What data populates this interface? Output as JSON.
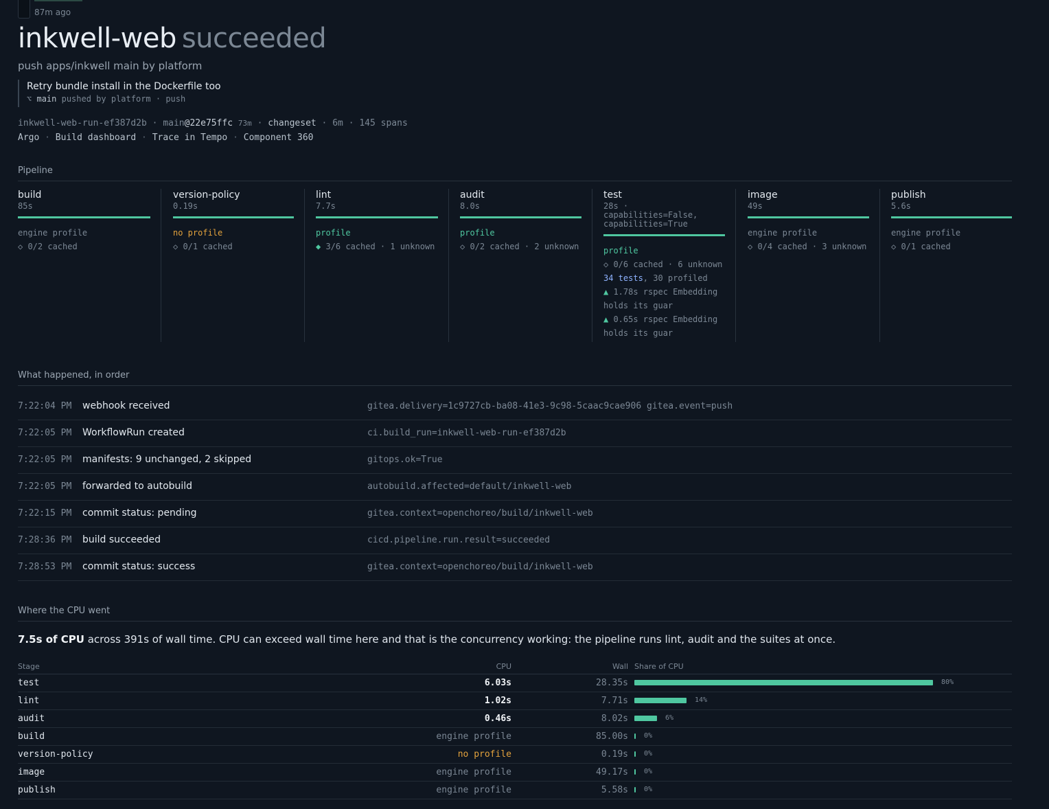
{
  "header": {
    "ago": "87m ago",
    "app_name": "inkwell-web",
    "status": "succeeded",
    "subtitle": "push apps/inkwell main by platform"
  },
  "commit": {
    "message": "Retry bundle install in the Dockerfile too",
    "branch_icon": "⌥",
    "branch": "main",
    "pushed_by": "pushed by platform · push"
  },
  "run": {
    "run_id": "inkwell-web-run-ef387d2b",
    "sep1": " · ",
    "ref_prefix": "main",
    "sha": "@22e75ffc",
    "sha_age": "73m",
    "sep2": " · ",
    "changeset": "changeset",
    "rest": " · 6m · 145 spans"
  },
  "links": {
    "argo": "Argo",
    "dashboard": "Build dashboard",
    "trace": "Trace in Tempo",
    "component": "Component 360",
    "sep": " · "
  },
  "pipeline": {
    "heading": "Pipeline",
    "stages": [
      {
        "name": "build",
        "duration": "85s",
        "profile": "engine profile",
        "cache": "◇ 0/2 cached"
      },
      {
        "name": "version-policy",
        "duration": "0.19s",
        "profile": "no profile",
        "cache": "◇ 0/1 cached"
      },
      {
        "name": "lint",
        "duration": "7.7s",
        "profile": "profile",
        "cache": "◆ 3/6 cached · 1 unknown"
      },
      {
        "name": "audit",
        "duration": "8.0s",
        "profile": "profile",
        "cache": "◇ 0/2 cached · 2 unknown"
      },
      {
        "name": "test",
        "duration": "28s ·",
        "duration2": "capabilities=False,",
        "duration3": "capabilities=True",
        "profile": "profile",
        "cache": "◇ 0/6 cached · 6 unknown",
        "tests_count": "34 tests",
        "tests_rest": ", 30 profiled",
        "slow1_icon": "▲",
        "slow1": " 1.78s rspec Embedding",
        "slow1b": "holds its guar",
        "slow2_icon": "▲",
        "slow2": " 0.65s rspec Embedding",
        "slow2b": "holds its guar"
      },
      {
        "name": "image",
        "duration": "49s",
        "profile": "engine profile",
        "cache": "◇ 0/4 cached · 3 unknown"
      },
      {
        "name": "publish",
        "duration": "5.6s",
        "profile": "engine profile",
        "cache": "◇ 0/1 cached"
      }
    ]
  },
  "timeline": {
    "heading": "What happened, in order",
    "events": [
      {
        "time": "7:22:04 PM",
        "text": "webhook received",
        "attrs": "gitea.delivery=1c9727cb-ba08-41e3-9c98-5caac9cae906 gitea.event=push"
      },
      {
        "time": "7:22:05 PM",
        "text": "WorkflowRun created",
        "attrs": "ci.build_run=inkwell-web-run-ef387d2b"
      },
      {
        "time": "7:22:05 PM",
        "text": "manifests: 9 unchanged, 2 skipped",
        "attrs": "gitops.ok=True"
      },
      {
        "time": "7:22:05 PM",
        "text": "forwarded to autobuild",
        "attrs": "autobuild.affected=default/inkwell-web"
      },
      {
        "time": "7:22:15 PM",
        "text": "commit status: pending",
        "attrs": "gitea.context=openchoreo/build/inkwell-web"
      },
      {
        "time": "7:28:36 PM",
        "text": "build succeeded",
        "attrs": "cicd.pipeline.run.result=succeeded"
      },
      {
        "time": "7:28:53 PM",
        "text": "commit status: success",
        "attrs": "gitea.context=openchoreo/build/inkwell-web"
      }
    ]
  },
  "cpu": {
    "heading": "Where the CPU went",
    "summary_bold": "7.5s of CPU",
    "summary_rest": " across 391s of wall time. CPU can exceed wall time here and that is the concurrency working: the pipeline runs lint, audit and the suites at once.",
    "columns": {
      "stage": "Stage",
      "cpu": "CPU",
      "wall": "Wall",
      "share": "Share of CPU"
    },
    "rows": [
      {
        "stage": "test",
        "cpu": "6.03s",
        "cpu_kind": "value",
        "wall": "28.35s",
        "share": 0.8,
        "share_label": "80%"
      },
      {
        "stage": "lint",
        "cpu": "1.02s",
        "cpu_kind": "value",
        "wall": "7.71s",
        "share": 0.14,
        "share_label": "14%"
      },
      {
        "stage": "audit",
        "cpu": "0.46s",
        "cpu_kind": "value",
        "wall": "8.02s",
        "share": 0.06,
        "share_label": "6%"
      },
      {
        "stage": "build",
        "cpu": "engine profile",
        "cpu_kind": "engine",
        "wall": "85.00s",
        "share": 0,
        "share_label": "0%"
      },
      {
        "stage": "version-policy",
        "cpu": "no profile",
        "cpu_kind": "none",
        "wall": "0.19s",
        "share": 0,
        "share_label": "0%"
      },
      {
        "stage": "image",
        "cpu": "engine profile",
        "cpu_kind": "engine",
        "wall": "49.17s",
        "share": 0,
        "share_label": "0%"
      },
      {
        "stage": "publish",
        "cpu": "engine profile",
        "cpu_kind": "engine",
        "wall": "5.58s",
        "share": 0,
        "share_label": "0%"
      }
    ]
  },
  "colors": {
    "accent": "#4fc7a0",
    "warn": "#e3a23d",
    "bg": "#0f1620"
  }
}
